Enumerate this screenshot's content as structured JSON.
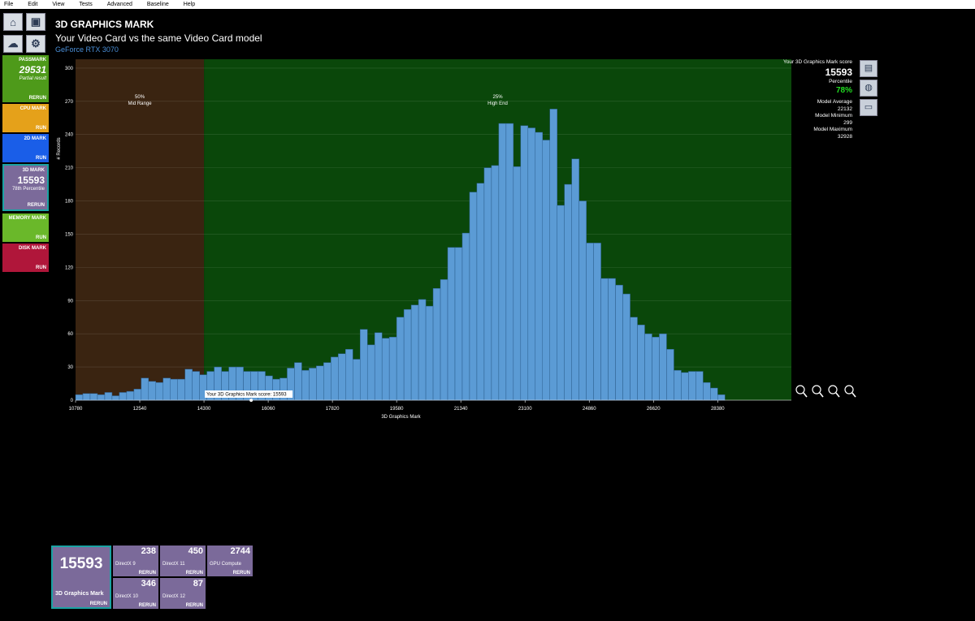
{
  "menu": [
    "File",
    "Edit",
    "View",
    "Tests",
    "Advanced",
    "Baseline",
    "Help"
  ],
  "sidebar": {
    "passmark": {
      "title": "PASSMARK",
      "score": 29531,
      "note": "Partial result",
      "button": "RERUN"
    },
    "cpu": {
      "title": "CPU MARK",
      "button": "RUN"
    },
    "mark2d": {
      "title": "2D MARK",
      "button": "RUN"
    },
    "mark3d": {
      "title": "3D MARK",
      "score": 15593,
      "note": "78th Percentile",
      "button": "RERUN"
    },
    "memory": {
      "title": "MEMORY MARK",
      "button": "RUN"
    },
    "disk": {
      "title": "DISK MARK",
      "button": "RUN"
    }
  },
  "header": {
    "title": "3D GRAPHICS MARK",
    "subtitle": "Your Video Card vs the same Video Card model",
    "model": "GeForce RTX 3070"
  },
  "chart_data": {
    "type": "histogram",
    "xlabel": "3D Graphics Mark",
    "ylabel": "# Records",
    "color": "#5b9bd5",
    "grid": true,
    "xlim": [
      10780,
      30400
    ],
    "ylim": [
      0,
      308
    ],
    "xticks": [
      10780,
      12540,
      14300,
      16060,
      17820,
      19580,
      21340,
      23100,
      24860,
      26620,
      28380
    ],
    "yticks": [
      0,
      30,
      60,
      90,
      120,
      150,
      180,
      210,
      240,
      270,
      300
    ],
    "bins": [
      10780,
      10980,
      11180,
      11380,
      11580,
      11780,
      11980,
      12180,
      12380,
      12580,
      12780,
      12980,
      13180,
      13380,
      13580,
      13780,
      13980,
      14180,
      14380,
      14580,
      14780,
      14980,
      15180,
      15380,
      15580,
      15780,
      15980,
      16180,
      16380,
      16580,
      16780,
      16980,
      17180,
      17380,
      17580,
      17780,
      17980,
      18180,
      18380,
      18580,
      18780,
      18980,
      19180,
      19380,
      19580,
      19780,
      19980,
      20180,
      20380,
      20580,
      20780,
      20980,
      21180,
      21380,
      21580,
      21780,
      21980,
      22180,
      22380,
      22580,
      22780,
      22980,
      23180,
      23380,
      23580,
      23780,
      23980,
      24180,
      24380,
      24580,
      24780,
      24980,
      25180,
      25380,
      25580,
      25780,
      25980,
      26180,
      26380,
      26580,
      26780,
      26980,
      27180,
      27380,
      27580,
      27780,
      27980,
      28180,
      28380,
      28580
    ],
    "values": [
      5,
      6,
      6,
      5,
      7,
      4,
      7,
      8,
      10,
      20,
      17,
      16,
      20,
      19,
      19,
      28,
      26,
      23,
      26,
      30,
      26,
      30,
      30,
      26,
      26,
      26,
      22,
      19,
      20,
      29,
      34,
      27,
      29,
      31,
      34,
      39,
      42,
      46,
      37,
      64,
      50,
      61,
      56,
      57,
      75,
      82,
      86,
      91,
      85,
      101,
      109,
      138,
      138,
      151,
      188,
      196,
      210,
      212,
      250,
      250,
      211,
      248,
      246,
      242,
      235,
      263,
      176,
      195,
      218,
      180,
      142,
      142,
      110,
      110,
      104,
      96,
      75,
      68,
      60,
      57,
      60,
      46,
      27,
      25,
      26,
      26,
      16,
      11,
      5
    ],
    "regions": [
      {
        "from": 10780,
        "to": 14300,
        "percent": "50%",
        "label": "Mid Range",
        "color": "#3a2411"
      },
      {
        "from": 14300,
        "to": 30400,
        "percent": "25%",
        "label": "High End",
        "color": "#0a470a"
      }
    ],
    "marker": {
      "value": 15593,
      "label": "Your 3D Graphics Mark score: 15593"
    }
  },
  "summary": {
    "score_label": "Your 3D Graphics Mark score",
    "score": 15593,
    "percentile_label": "Percentile",
    "percentile": "78%",
    "average_label": "Model Average",
    "average": 22132,
    "minimum_label": "Model Minimum",
    "minimum": 299,
    "maximum_label": "Model Maximum",
    "maximum": 32928
  },
  "tiles": [
    {
      "score": 15593,
      "label": "3D Graphics Mark",
      "button": "RERUN"
    },
    {
      "score": 238,
      "label": "DirectX 9",
      "button": "RERUN"
    },
    {
      "score": 450,
      "label": "DirectX 11",
      "button": "RERUN"
    },
    {
      "score": 2744,
      "label": "GPU Compute",
      "button": "RERUN"
    },
    {
      "score": 346,
      "label": "DirectX 10",
      "button": "RERUN"
    },
    {
      "score": 87,
      "label": "DirectX 12",
      "button": "RERUN"
    }
  ]
}
